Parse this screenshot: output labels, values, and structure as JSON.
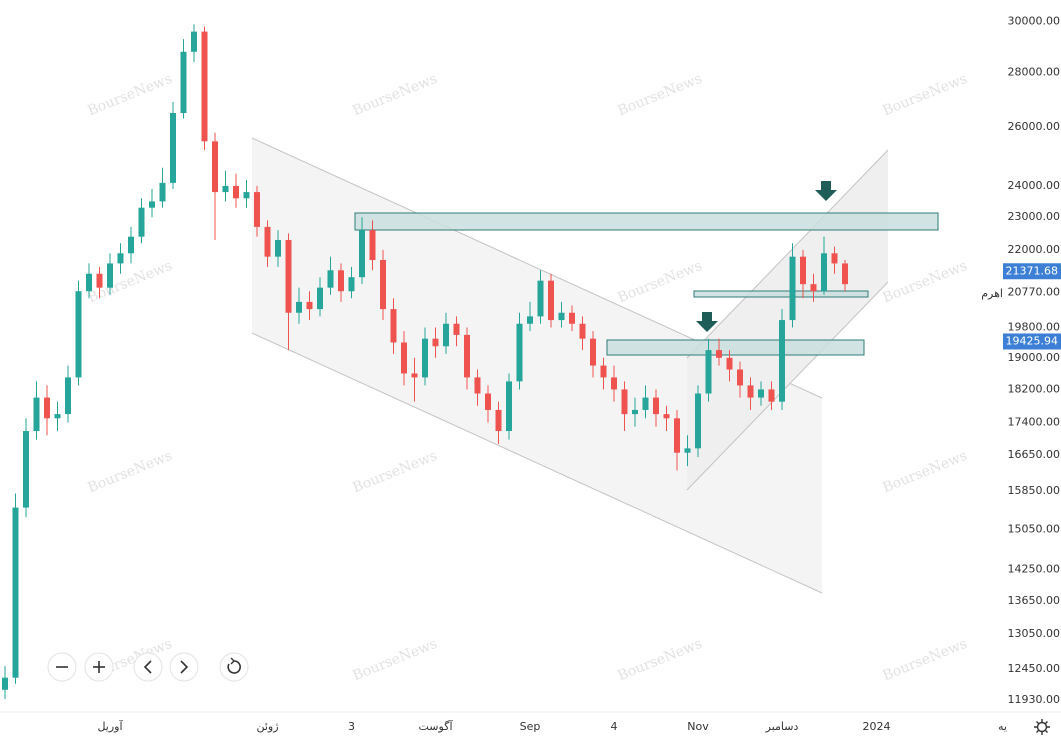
{
  "chart_data": {
    "type": "candlestick",
    "watermark": "BourseNews",
    "log_scale_y": true,
    "grid": false,
    "up_color": "#26a69a",
    "down_color": "#ef5350",
    "ylim": [
      11740,
      30900
    ],
    "yticks": [
      {
        "value": 30000,
        "label": "30000.00"
      },
      {
        "value": 28000,
        "label": "28000.00"
      },
      {
        "value": 26000,
        "label": "26000.00"
      },
      {
        "value": 24000,
        "label": "24000.00"
      },
      {
        "value": 23000,
        "label": "23000.00"
      },
      {
        "value": 22000,
        "label": "22000.00"
      },
      {
        "value": 20770,
        "label": "20770.00"
      },
      {
        "value": 19800,
        "label": "19800.00"
      },
      {
        "value": 19000,
        "label": "19000.00"
      },
      {
        "value": 18200,
        "label": "18200.00"
      },
      {
        "value": 17400,
        "label": "17400.00"
      },
      {
        "value": 16650,
        "label": "16650.00"
      },
      {
        "value": 15850,
        "label": "15850.00"
      },
      {
        "value": 15050,
        "label": "15050.00"
      },
      {
        "value": 14250,
        "label": "14250.00"
      },
      {
        "value": 13650,
        "label": "13650.00"
      },
      {
        "value": 13050,
        "label": "13050.00"
      },
      {
        "value": 12450,
        "label": "12450.00"
      },
      {
        "value": 11930,
        "label": "11930.00"
      }
    ],
    "price_tags": [
      21371.68,
      19425.94
    ],
    "level_label": "اهرم",
    "categories": [
      null,
      null,
      null,
      null,
      null,
      null,
      null,
      null,
      null,
      null,
      "آوریل",
      null,
      null,
      null,
      null,
      null,
      null,
      null,
      null,
      null,
      null,
      null,
      null,
      null,
      null,
      "ژوئن",
      null,
      null,
      null,
      null,
      null,
      null,
      null,
      "3",
      null,
      null,
      null,
      null,
      null,
      null,
      null,
      "آگوست",
      null,
      null,
      null,
      null,
      null,
      null,
      null,
      null,
      "Sep",
      null,
      null,
      null,
      null,
      null,
      null,
      null,
      "4",
      null,
      null,
      null,
      null,
      null,
      null,
      null,
      "Nov",
      null,
      null,
      null,
      null,
      null,
      null,
      null,
      "دسامبر",
      null,
      null,
      null,
      null,
      null,
      null,
      null,
      null,
      "2024",
      null,
      null,
      null,
      null,
      null,
      null,
      null,
      null,
      null,
      null,
      null,
      "یه"
    ],
    "open": [
      12100,
      12300,
      15500,
      17200,
      18000,
      17500,
      17600,
      18500,
      20800,
      21300,
      20900,
      21600,
      21900,
      22400,
      23300,
      23500,
      24100,
      26500,
      28800,
      29600,
      25500,
      23800,
      24000,
      23600,
      23800,
      22700,
      21800,
      22300,
      20200,
      20500,
      20300,
      20900,
      21400,
      20800,
      21200,
      22600,
      21700,
      20300,
      19400,
      18600,
      18500,
      19500,
      19300,
      19900,
      19600,
      18500,
      18100,
      17700,
      17200,
      18400,
      19900,
      20100,
      21100,
      20000,
      20200,
      19900,
      19500,
      18800,
      18500,
      18200,
      17600,
      17700,
      18000,
      17600,
      17500,
      16700,
      16800,
      18100,
      19200,
      19000,
      18700,
      18300,
      18000,
      18200,
      17900,
      20000,
      21800,
      21000,
      20800,
      21900,
      21600,
      null,
      null,
      null,
      null,
      null,
      null,
      null,
      null,
      null,
      null,
      null,
      null,
      null,
      null,
      null
    ],
    "high": [
      12500,
      15800,
      17500,
      18400,
      18300,
      17900,
      18800,
      21100,
      21600,
      21500,
      21900,
      22200,
      22700,
      23600,
      23900,
      24600,
      26900,
      29300,
      29900,
      29800,
      25800,
      24500,
      24400,
      24200,
      24000,
      22900,
      22600,
      22500,
      20900,
      20800,
      21200,
      21800,
      21600,
      21500,
      23000,
      22900,
      22000,
      20600,
      19700,
      19000,
      19800,
      19800,
      20200,
      20100,
      19800,
      18700,
      18300,
      17900,
      18600,
      20200,
      20500,
      21400,
      21300,
      20500,
      20400,
      20100,
      19700,
      19000,
      18800,
      18400,
      18000,
      18300,
      18200,
      17800,
      17700,
      17100,
      18300,
      19500,
      19500,
      19200,
      18900,
      18500,
      18400,
      18400,
      20300,
      22200,
      22000,
      21300,
      22400,
      22100,
      21700,
      null,
      null,
      null,
      null,
      null,
      null,
      null,
      null,
      null,
      null,
      null,
      null,
      null,
      null,
      null
    ],
    "low": [
      11950,
      12200,
      15300,
      17000,
      17100,
      17200,
      17400,
      18300,
      20600,
      20600,
      20700,
      21300,
      21600,
      22200,
      23000,
      23300,
      23900,
      26300,
      28400,
      25200,
      22300,
      23500,
      23300,
      23300,
      22400,
      21500,
      21500,
      19200,
      19900,
      20000,
      20100,
      20700,
      20500,
      20600,
      21000,
      21400,
      20000,
      19100,
      18300,
      17900,
      18300,
      19000,
      19100,
      19300,
      18200,
      17800,
      17400,
      16900,
      17000,
      18200,
      19700,
      19900,
      19800,
      19800,
      19700,
      19200,
      18500,
      18200,
      17900,
      17200,
      17300,
      17500,
      17300,
      17200,
      16300,
      16400,
      16600,
      17900,
      18800,
      18400,
      18000,
      17700,
      17800,
      17700,
      17700,
      19800,
      20600,
      20500,
      20700,
      21300,
      20800,
      null,
      null,
      null,
      null,
      null,
      null,
      null,
      null,
      null,
      null,
      null,
      null,
      null,
      null,
      null
    ],
    "close": [
      12300,
      15500,
      17200,
      18000,
      17500,
      17600,
      18500,
      20800,
      21300,
      20900,
      21600,
      21900,
      22400,
      23300,
      23500,
      24100,
      26500,
      28800,
      29600,
      25500,
      23800,
      24000,
      23600,
      23800,
      22700,
      21800,
      22300,
      20200,
      20500,
      20300,
      20900,
      21400,
      20800,
      21200,
      22600,
      21700,
      20300,
      19400,
      18600,
      18500,
      19500,
      19300,
      19900,
      19600,
      18500,
      18100,
      17700,
      17200,
      18400,
      19900,
      20100,
      21100,
      20000,
      20200,
      19900,
      19500,
      18800,
      18500,
      18200,
      17600,
      17700,
      18000,
      17600,
      17500,
      16700,
      16800,
      18100,
      19200,
      19000,
      18700,
      18300,
      18000,
      18200,
      17900,
      20000,
      21800,
      21000,
      20800,
      21900,
      21600,
      21000,
      null,
      null,
      null,
      null,
      null,
      null,
      null,
      null,
      null,
      null,
      null,
      null,
      null,
      null,
      null
    ]
  }
}
